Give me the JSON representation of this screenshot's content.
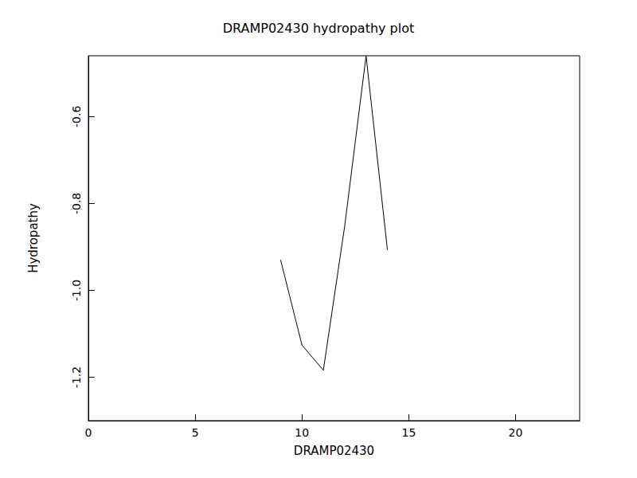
{
  "chart_data": {
    "type": "line",
    "title": "DRAMP02430 hydropathy plot",
    "x_label": "DRAMP02430",
    "y_label": "Hydropathy",
    "x": [
      9,
      10,
      11,
      12,
      13,
      14
    ],
    "values": [
      -0.93,
      -1.126,
      -1.184,
      -0.852,
      -0.46,
      -0.907
    ],
    "color": "#000000",
    "xlim": [
      0,
      23
    ],
    "xticks": [
      0,
      5,
      10,
      15,
      20
    ],
    "ylim": [
      -1.3,
      -0.46
    ],
    "yticks": [
      -1.2,
      {
        "value": -1,
        "label": "-1.0"
      },
      -0.8,
      -0.6
    ],
    "grid": false
  }
}
